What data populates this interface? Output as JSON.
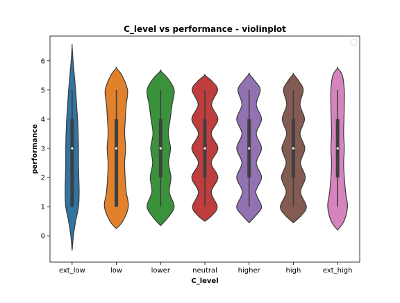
{
  "chart_data": {
    "type": "violin",
    "title": "C_level vs performance - violinplot",
    "xlabel": "C_level",
    "ylabel": "performance",
    "ylim": [
      -0.9,
      6.85
    ],
    "yticks": [
      0,
      1,
      2,
      3,
      4,
      5,
      6
    ],
    "grid": false,
    "legend": {
      "position": "top-right",
      "entries": []
    },
    "categories": [
      "ext_low",
      "low",
      "lower",
      "neutral",
      "higher",
      "high",
      "ext_high"
    ],
    "colors": [
      "#3274a1",
      "#e1812c",
      "#3a923a",
      "#c03d3e",
      "#9372b2",
      "#845b53",
      "#d684bd"
    ],
    "violins": [
      {
        "category": "ext_low",
        "min": -0.5,
        "max": 6.5,
        "q1": 1,
        "median": 3,
        "q3": 4,
        "whisker_low": 1,
        "whisker_high": 5,
        "density": [
          [
            -0.5,
            0.0
          ],
          [
            0.0,
            0.08
          ],
          [
            0.5,
            0.22
          ],
          [
            1.0,
            0.4
          ],
          [
            1.5,
            0.44
          ],
          [
            2.0,
            0.42
          ],
          [
            2.5,
            0.4
          ],
          [
            3.0,
            0.4
          ],
          [
            3.5,
            0.38
          ],
          [
            4.0,
            0.34
          ],
          [
            4.5,
            0.28
          ],
          [
            5.0,
            0.22
          ],
          [
            5.5,
            0.14
          ],
          [
            6.0,
            0.06
          ],
          [
            6.5,
            0.0
          ]
        ]
      },
      {
        "category": "low",
        "min": 0.25,
        "max": 5.75,
        "q1": 1,
        "median": 3,
        "q3": 4,
        "whisker_low": 1,
        "whisker_high": 5,
        "density": [
          [
            0.25,
            0.0
          ],
          [
            0.5,
            0.4
          ],
          [
            1.0,
            0.75
          ],
          [
            1.5,
            0.62
          ],
          [
            2.0,
            0.55
          ],
          [
            2.5,
            0.52
          ],
          [
            3.0,
            0.58
          ],
          [
            3.5,
            0.52
          ],
          [
            4.0,
            0.56
          ],
          [
            4.5,
            0.62
          ],
          [
            5.0,
            0.7
          ],
          [
            5.5,
            0.35
          ],
          [
            5.75,
            0.0
          ]
        ]
      },
      {
        "category": "lower",
        "min": 0.35,
        "max": 5.65,
        "q1": 2,
        "median": 3,
        "q3": 4,
        "whisker_low": 1,
        "whisker_high": 5,
        "density": [
          [
            0.35,
            0.0
          ],
          [
            0.6,
            0.42
          ],
          [
            1.0,
            0.85
          ],
          [
            1.5,
            0.55
          ],
          [
            2.0,
            0.65
          ],
          [
            2.5,
            0.5
          ],
          [
            3.0,
            0.62
          ],
          [
            3.5,
            0.48
          ],
          [
            4.0,
            0.6
          ],
          [
            4.5,
            0.72
          ],
          [
            5.0,
            0.85
          ],
          [
            5.4,
            0.45
          ],
          [
            5.65,
            0.0
          ]
        ]
      },
      {
        "category": "neutral",
        "min": 0.5,
        "max": 5.5,
        "q1": 2,
        "median": 3,
        "q3": 4,
        "whisker_low": 1,
        "whisker_high": 5,
        "density": [
          [
            0.5,
            0.0
          ],
          [
            0.7,
            0.45
          ],
          [
            1.0,
            0.78
          ],
          [
            1.5,
            0.4
          ],
          [
            2.0,
            0.82
          ],
          [
            2.5,
            0.4
          ],
          [
            3.0,
            0.82
          ],
          [
            3.5,
            0.4
          ],
          [
            4.0,
            0.82
          ],
          [
            4.5,
            0.42
          ],
          [
            5.0,
            0.8
          ],
          [
            5.3,
            0.45
          ],
          [
            5.5,
            0.0
          ]
        ]
      },
      {
        "category": "higher",
        "min": 0.45,
        "max": 5.55,
        "q1": 2,
        "median": 3,
        "q3": 4,
        "whisker_low": 1,
        "whisker_high": 5,
        "density": [
          [
            0.45,
            0.0
          ],
          [
            0.7,
            0.42
          ],
          [
            1.0,
            0.78
          ],
          [
            1.5,
            0.42
          ],
          [
            2.0,
            0.78
          ],
          [
            2.5,
            0.45
          ],
          [
            3.0,
            0.78
          ],
          [
            3.5,
            0.45
          ],
          [
            4.0,
            0.78
          ],
          [
            4.5,
            0.45
          ],
          [
            5.0,
            0.7
          ],
          [
            5.3,
            0.38
          ],
          [
            5.55,
            0.0
          ]
        ]
      },
      {
        "category": "high",
        "min": 0.45,
        "max": 5.55,
        "q1": 2,
        "median": 3,
        "q3": 4,
        "whisker_low": 1,
        "whisker_high": 5,
        "density": [
          [
            0.45,
            0.0
          ],
          [
            0.7,
            0.5
          ],
          [
            1.0,
            0.82
          ],
          [
            1.5,
            0.45
          ],
          [
            2.0,
            0.75
          ],
          [
            2.5,
            0.45
          ],
          [
            3.0,
            0.72
          ],
          [
            3.5,
            0.42
          ],
          [
            4.0,
            0.7
          ],
          [
            4.5,
            0.42
          ],
          [
            5.0,
            0.62
          ],
          [
            5.3,
            0.35
          ],
          [
            5.55,
            0.0
          ]
        ]
      },
      {
        "category": "ext_high",
        "min": 0.2,
        "max": 5.75,
        "q1": 2,
        "median": 3,
        "q3": 4,
        "whisker_low": 1,
        "whisker_high": 5,
        "density": [
          [
            0.2,
            0.0
          ],
          [
            0.5,
            0.4
          ],
          [
            1.0,
            0.62
          ],
          [
            1.5,
            0.5
          ],
          [
            2.0,
            0.42
          ],
          [
            2.5,
            0.38
          ],
          [
            3.0,
            0.42
          ],
          [
            3.5,
            0.38
          ],
          [
            4.0,
            0.4
          ],
          [
            4.5,
            0.42
          ],
          [
            5.0,
            0.42
          ],
          [
            5.5,
            0.3
          ],
          [
            5.75,
            0.0
          ]
        ]
      }
    ]
  }
}
